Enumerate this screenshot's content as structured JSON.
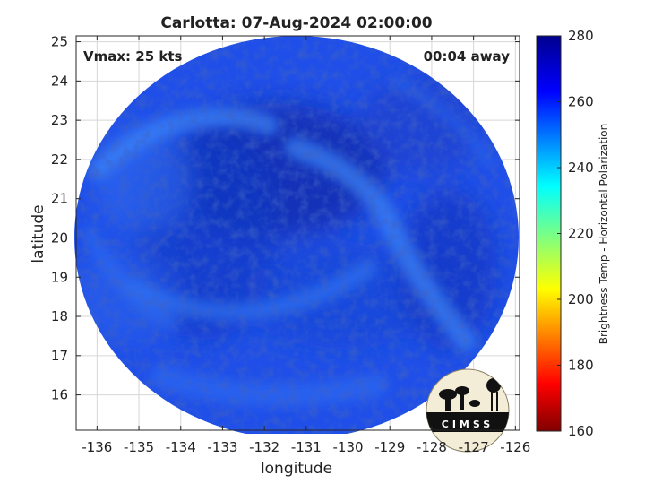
{
  "chart_data": {
    "type": "heatmap",
    "title": "Carlotta: 07-Aug-2024 02:00:00",
    "annotations": {
      "left": "Vmax: 25 kts",
      "right": "00:04 away"
    },
    "xlabel": "longitude",
    "ylabel": "latitude",
    "xlim": [
      -136.5,
      -125.9
    ],
    "ylim": [
      15.1,
      25.15
    ],
    "xticks": [
      -136,
      -135,
      -134,
      -133,
      -132,
      -131,
      -130,
      -129,
      -128,
      -127,
      -126
    ],
    "yticks": [
      16,
      17,
      18,
      19,
      20,
      21,
      22,
      23,
      24,
      25
    ],
    "grid": true,
    "center": {
      "lon": -131.2,
      "lat": 20.1
    },
    "colorbar": {
      "label": "Brightness Temp - Horizontal Polarization",
      "min": 160,
      "max": 280,
      "ticks": [
        160,
        180,
        200,
        220,
        240,
        260,
        280
      ],
      "colormap": "jet"
    },
    "logo_text": "CIMSS"
  },
  "colors": {
    "field_base": "#1f4fe8",
    "field_dark": "#0d28a8",
    "field_light": "#3579f2",
    "logo_bg": "#f3ecd6"
  }
}
